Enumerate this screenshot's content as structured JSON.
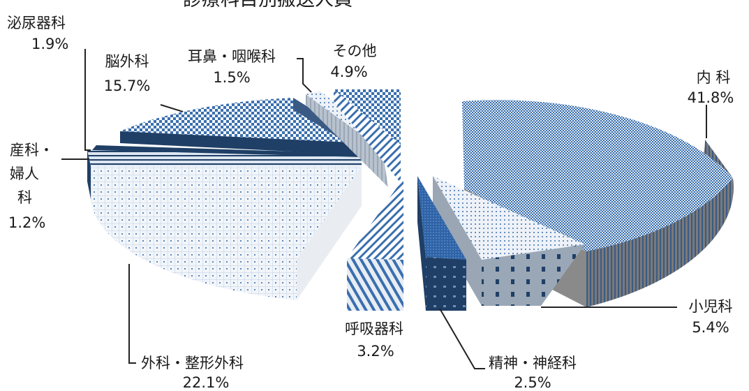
{
  "chart_data": {
    "type": "pie",
    "style": "3d-exploded",
    "title": "診療科目別搬送人員",
    "slices": [
      {
        "name": "内 科",
        "value": 41.8,
        "label": "41.8%"
      },
      {
        "name": "小児科",
        "value": 5.4,
        "label": "5.4%"
      },
      {
        "name": "精神・神経科",
        "value": 2.5,
        "label": "2.5%"
      },
      {
        "name": "呼吸器科",
        "value": 3.2,
        "label": "3.2%"
      },
      {
        "name": "外科・整形外科",
        "value": 22.1,
        "label": "22.1%"
      },
      {
        "name": "産科・婦人科",
        "value": 1.2,
        "label": "1.2%",
        "name_lines": [
          "産科・",
          "婦人",
          "科"
        ]
      },
      {
        "name": "泌尿器科",
        "value": 1.9,
        "label": "1.9%"
      },
      {
        "name": "脳外科",
        "value": 15.7,
        "label": "15.7%"
      },
      {
        "name": "耳鼻・咽喉科",
        "value": 1.5,
        "label": "1.5%"
      },
      {
        "name": "その他",
        "value": 4.9,
        "label": "4.9%"
      }
    ],
    "legend": "none",
    "colors": {
      "primary": "#3a6fae",
      "dark": "#1f3f66",
      "side": "#7f7f7f",
      "light": "#e8eef6"
    }
  }
}
